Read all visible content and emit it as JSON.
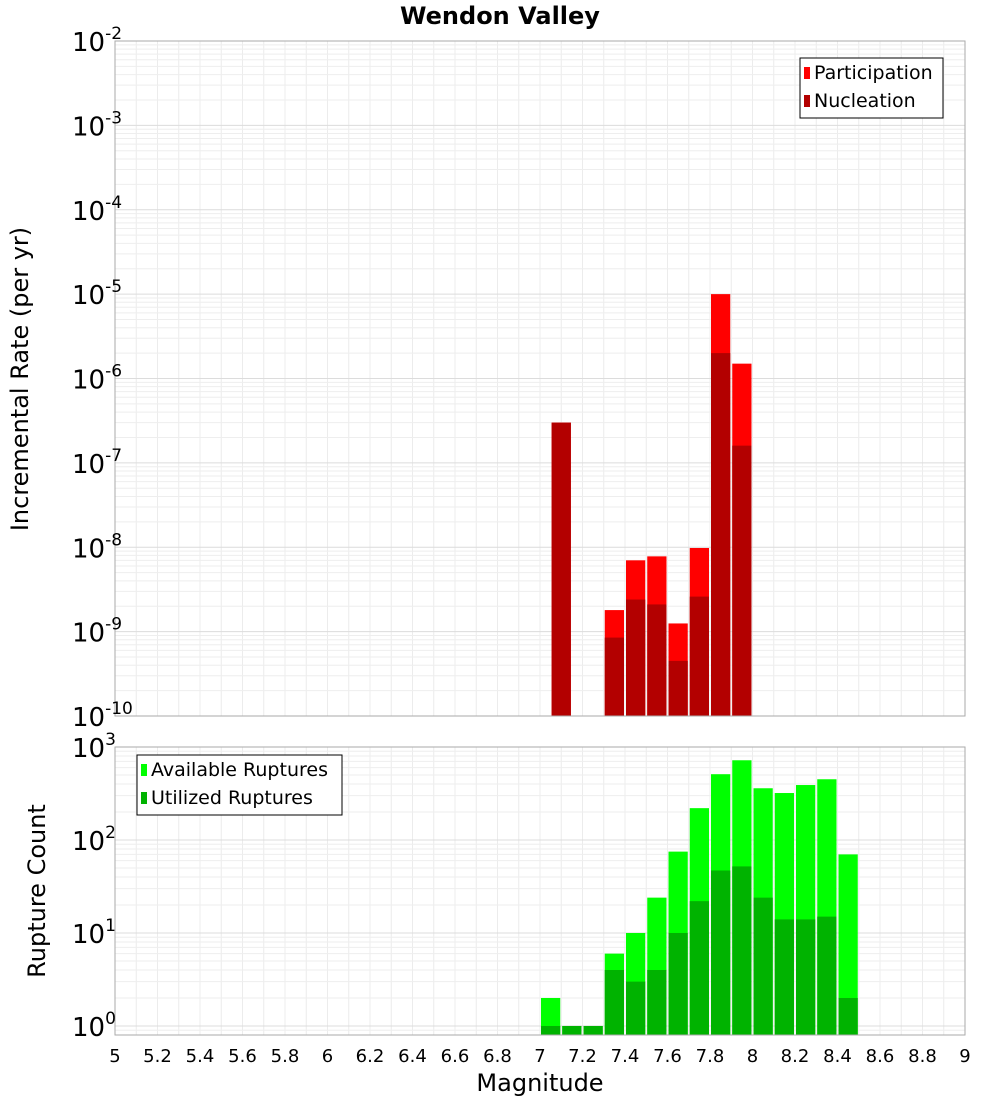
{
  "chart_data": [
    {
      "type": "bar",
      "title": "Wendon Valley",
      "xlabel": "",
      "ylabel": "Incremental Rate (per yr)",
      "yscale": "log",
      "xlim": [
        5,
        9
      ],
      "ylim": [
        1e-10,
        0.01
      ],
      "y_tick_exponents": [
        "-2",
        "-3",
        "-4",
        "-5",
        "-6",
        "-7",
        "-8",
        "-9",
        "-10"
      ],
      "grid": true,
      "legend": "top-right",
      "bin_width": 0.1,
      "x": [
        7.1,
        7.35,
        7.45,
        7.55,
        7.65,
        7.75,
        7.85,
        7.95
      ],
      "series": [
        {
          "name": "Participation",
          "color": "#ff0000",
          "values": [
            3e-07,
            1.8e-09,
            7e-09,
            7.8e-09,
            1.25e-09,
            9.8e-09,
            1e-05,
            1.5e-06
          ]
        },
        {
          "name": "Nucleation",
          "color": "#b30000",
          "values": [
            3e-07,
            8.5e-10,
            2.4e-09,
            2.1e-09,
            4.5e-10,
            2.6e-09,
            2e-06,
            1.6e-07
          ]
        }
      ]
    },
    {
      "type": "bar",
      "title": "",
      "xlabel": "Magnitude",
      "ylabel": "Rupture Count",
      "yscale": "log",
      "xlim": [
        5,
        9
      ],
      "ylim": [
        0.8,
        1000
      ],
      "y_tick_exponents": [
        "3",
        "2",
        "1",
        "0"
      ],
      "x_ticks": [
        "5",
        "5.2",
        "5.4",
        "5.6",
        "5.8",
        "6",
        "6.2",
        "6.4",
        "6.6",
        "6.8",
        "7",
        "7.2",
        "7.4",
        "7.6",
        "7.8",
        "8",
        "8.2",
        "8.4",
        "8.6",
        "8.8",
        "9"
      ],
      "grid": true,
      "legend": "top-left",
      "bin_width": 0.1,
      "x": [
        7.05,
        7.15,
        7.25,
        7.35,
        7.45,
        7.55,
        7.65,
        7.75,
        7.85,
        7.95,
        8.05,
        8.15,
        8.25,
        8.35,
        8.45
      ],
      "series": [
        {
          "name": "Available Ruptures",
          "color": "#00ff00",
          "values": [
            2,
            1,
            1,
            6,
            10,
            24,
            75,
            220,
            510,
            720,
            360,
            320,
            390,
            450,
            70
          ]
        },
        {
          "name": "Utilized Ruptures",
          "color": "#00b300",
          "values": [
            1,
            1,
            1,
            4,
            3,
            4,
            10,
            22,
            47,
            52,
            24,
            14,
            14,
            15,
            2
          ]
        }
      ]
    }
  ]
}
